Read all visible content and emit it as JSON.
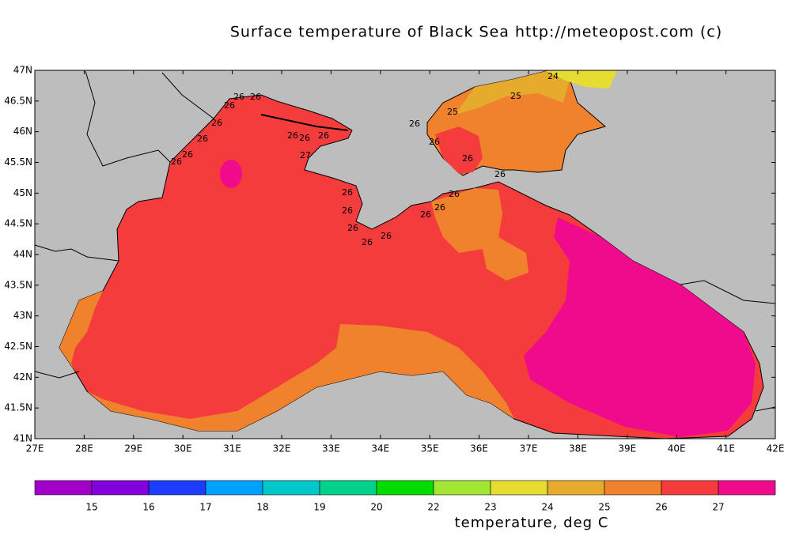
{
  "title": "Surface temperature of Black Sea  http://meteopost.com (c)",
  "lat_labels": [
    "47N",
    "46.5N",
    "46N",
    "45.5N",
    "45N",
    "44.5N",
    "44N",
    "43.5N",
    "43N",
    "42.5N",
    "42N",
    "41.5N",
    "41N"
  ],
  "lon_labels": [
    "27E",
    "28E",
    "29E",
    "30E",
    "31E",
    "32E",
    "33E",
    "34E",
    "35E",
    "36E",
    "37E",
    "38E",
    "39E",
    "40E",
    "41E",
    "42E"
  ],
  "map_labels": [
    "24",
    "25",
    "25",
    "26",
    "26",
    "26",
    "26",
    "26",
    "26",
    "26",
    "26",
    "26",
    "26",
    "26",
    "26",
    "26",
    "26",
    "26",
    "26",
    "26",
    "27",
    "26",
    "26",
    "26",
    "26",
    "26"
  ],
  "colorbar": {
    "labels": [
      "15",
      "16",
      "17",
      "18",
      "19",
      "20",
      "22",
      "23",
      "24",
      "25",
      "26",
      "27"
    ],
    "colors": [
      "#a000c8",
      "#8200dc",
      "#1e3cff",
      "#00a0ff",
      "#00c8c8",
      "#00d28c",
      "#00dc00",
      "#a0e632",
      "#e6dc32",
      "#e6aa2d",
      "#f0822d",
      "#f53c3c",
      "#f00a8c"
    ],
    "title": "temperature, deg C"
  }
}
